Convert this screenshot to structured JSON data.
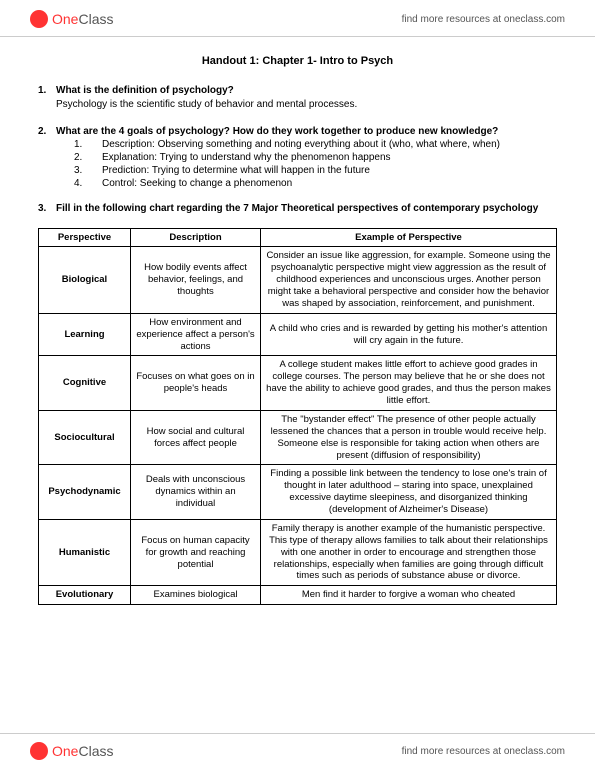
{
  "brand": {
    "one": "One",
    "class": "Class"
  },
  "header_link": "find more resources at oneclass.com",
  "doc_title": "Handout 1: Chapter 1- Intro to Psych",
  "q1": {
    "num": "1.",
    "heading": "What is the definition of psychology?",
    "body": "Psychology is the scientific study of behavior and mental processes."
  },
  "q2": {
    "num": "2.",
    "heading": "What are the 4 goals of psychology? How do they work together to produce new knowledge?",
    "goals": [
      {
        "n": "1.",
        "text": "Description: Observing something and noting everything about it (who, what where, when)"
      },
      {
        "n": "2.",
        "text": "Explanation: Trying to understand why the phenomenon happens"
      },
      {
        "n": "3.",
        "text": "Prediction: Trying to determine what will happen in the future"
      },
      {
        "n": "4.",
        "text": "Control: Seeking to change a phenomenon"
      }
    ]
  },
  "q3": {
    "num": "3.",
    "heading": "Fill in the following chart regarding the 7 Major Theoretical perspectives of contemporary psychology"
  },
  "table": {
    "headers": {
      "c1": "Perspective",
      "c2": "Description",
      "c3": "Example of Perspective"
    },
    "rows": [
      {
        "p": "Biological",
        "d": "How bodily events affect behavior, feelings, and thoughts",
        "e": "Consider an issue like aggression, for example. Someone using the psychoanalytic perspective might view aggression as the result of childhood experiences and unconscious urges. Another person might take a behavioral perspective and consider how the behavior was shaped by association, reinforcement, and punishment."
      },
      {
        "p": "Learning",
        "d": "How environment and experience affect a person's actions",
        "e": "A child who cries and is rewarded by getting his mother's attention will cry again in the future."
      },
      {
        "p": "Cognitive",
        "d": "Focuses on what goes on in people's heads",
        "e": "A college student makes little effort to achieve good grades in college courses. The person may believe that he or she does not have the ability to achieve good grades, and thus the person makes little effort."
      },
      {
        "p": "Sociocultural",
        "d": "How social and cultural forces affect people",
        "e": "The \"bystander effect\" The presence of other people actually lessened the chances that a person in trouble would receive help. Someone else is responsible for taking action when others are present (diffusion of responsibility)"
      },
      {
        "p": "Psychodynamic",
        "d": "Deals with unconscious dynamics within an individual",
        "e": "Finding a possible link between the tendency to lose one's train of thought in later adulthood – staring into space, unexplained excessive daytime sleepiness, and disorganized thinking (development of Alzheimer's Disease)"
      },
      {
        "p": "Humanistic",
        "d": "Focus on human capacity for growth and reaching potential",
        "e": "Family therapy is another example of the humanistic perspective. This type of therapy allows families to talk about their relationships with one another in order to encourage and strengthen those relationships, especially when families are going through difficult times such as periods of substance abuse or divorce."
      },
      {
        "p": "Evolutionary",
        "d": "Examines biological",
        "e": "Men find it harder to forgive a woman who cheated"
      }
    ]
  }
}
